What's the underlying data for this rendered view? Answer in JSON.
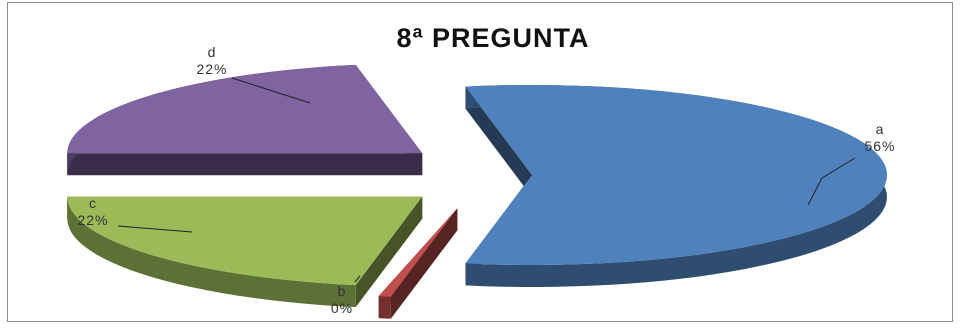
{
  "chart_data": {
    "type": "pie",
    "title": "8ª PREGUNTA",
    "categories": [
      "a",
      "b",
      "c",
      "d"
    ],
    "values": [
      56,
      0,
      22,
      22
    ],
    "percent_labels": [
      "56%",
      "0%",
      "22%",
      "22%"
    ],
    "colors": [
      "#4f81bd",
      "#c0504d",
      "#9bbb59",
      "#8064a2"
    ],
    "style": "3d-exploded",
    "legend": "none"
  }
}
